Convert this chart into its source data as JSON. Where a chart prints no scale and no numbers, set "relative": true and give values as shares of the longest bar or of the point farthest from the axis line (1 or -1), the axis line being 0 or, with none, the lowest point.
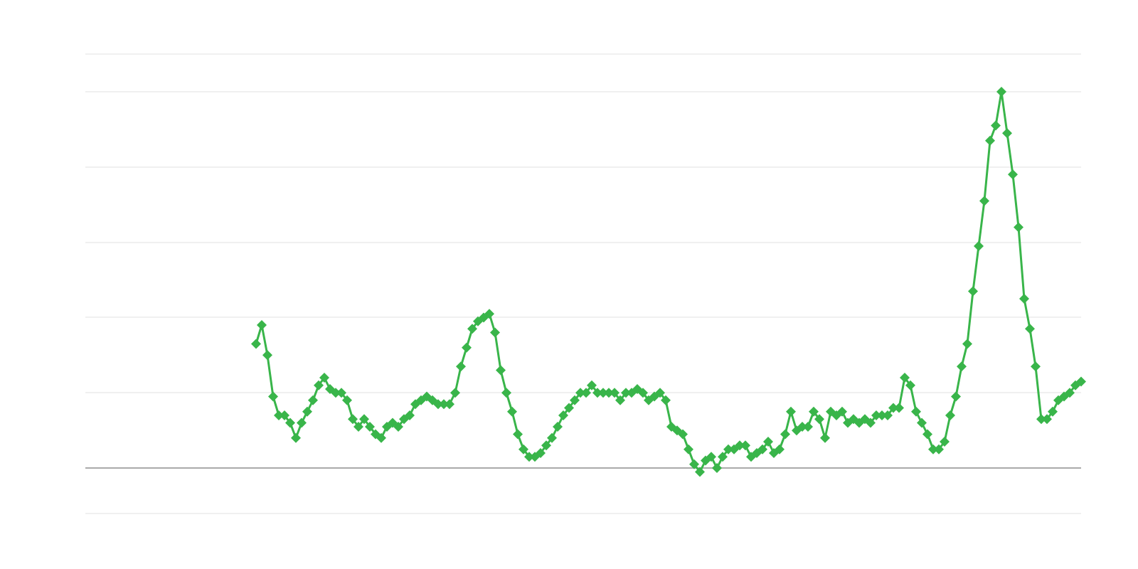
{
  "chart_data": {
    "type": "line",
    "relative": true,
    "color": "#39b54a",
    "marker": "diamond",
    "line_style": "solid",
    "grid": "y",
    "legend": false,
    "categories": [
      null,
      null,
      null,
      null,
      null,
      null,
      null,
      null,
      null,
      null,
      null,
      null,
      null,
      null,
      null,
      null,
      null,
      null,
      null,
      null,
      null,
      null,
      null,
      null,
      null,
      null,
      null,
      null,
      null,
      null,
      null,
      null,
      null,
      null,
      null,
      null,
      null,
      null,
      null,
      null,
      null,
      null,
      null,
      null,
      null,
      null,
      null,
      null,
      null,
      null,
      null,
      null,
      null,
      null,
      null,
      null,
      null,
      null,
      null,
      null,
      null,
      null,
      null,
      null,
      null,
      null,
      null,
      null,
      null,
      null,
      null,
      null,
      null,
      null,
      null,
      null,
      null,
      null,
      null,
      null,
      null,
      null,
      null,
      null,
      null,
      null,
      null,
      null,
      null,
      null,
      null,
      null,
      null,
      null,
      null,
      null,
      null,
      null,
      null,
      null,
      null,
      null,
      null,
      null,
      null,
      null,
      null,
      null,
      null,
      null,
      null,
      null,
      null,
      null,
      null,
      null,
      null,
      null,
      null,
      null,
      null,
      null,
      null,
      null,
      null,
      null,
      null,
      null,
      null,
      null,
      null,
      null,
      null,
      null,
      null,
      null,
      null,
      null,
      null,
      null,
      null,
      null,
      null,
      null,
      null,
      null,
      null,
      null,
      null,
      null,
      null,
      null,
      null,
      null,
      null,
      null,
      null,
      null,
      null,
      null,
      null,
      null,
      null,
      null,
      null,
      null,
      null,
      null,
      null,
      null,
      null,
      null,
      null,
      null,
      null,
      null
    ],
    "values": [
      null,
      null,
      null,
      null,
      null,
      null,
      null,
      null,
      null,
      null,
      null,
      null,
      null,
      null,
      null,
      null,
      null,
      null,
      null,
      null,
      null,
      null,
      null,
      null,
      null,
      null,
      null,
      null,
      null,
      null,
      0.33,
      0.38,
      0.3,
      0.19,
      0.14,
      0.14,
      0.12,
      0.08,
      0.12,
      0.15,
      0.18,
      0.22,
      0.24,
      0.21,
      0.2,
      0.2,
      0.18,
      0.13,
      0.11,
      0.13,
      0.11,
      0.09,
      0.08,
      0.11,
      0.12,
      0.11,
      0.13,
      0.14,
      0.17,
      0.18,
      0.19,
      0.18,
      0.17,
      0.17,
      0.17,
      0.2,
      0.27,
      0.32,
      0.37,
      0.39,
      0.4,
      0.41,
      0.36,
      0.26,
      0.2,
      0.15,
      0.09,
      0.05,
      0.03,
      0.03,
      0.04,
      0.06,
      0.08,
      0.11,
      0.14,
      0.16,
      0.18,
      0.2,
      0.2,
      0.22,
      0.2,
      0.2,
      0.2,
      0.2,
      0.18,
      0.2,
      0.2,
      0.21,
      0.2,
      0.18,
      0.19,
      0.2,
      0.18,
      0.11,
      0.1,
      0.09,
      0.05,
      0.01,
      -0.01,
      0.02,
      0.03,
      0.0,
      0.03,
      0.05,
      0.05,
      0.06,
      0.06,
      0.03,
      0.04,
      0.05,
      0.07,
      0.04,
      0.05,
      0.09,
      0.15,
      0.1,
      0.11,
      0.11,
      0.15,
      0.13,
      0.08,
      0.15,
      0.14,
      0.15,
      0.12,
      0.13,
      0.12,
      0.13,
      0.12,
      0.14,
      0.14,
      0.14,
      0.16,
      0.16,
      0.24,
      0.22,
      0.15,
      0.12,
      0.09,
      0.05,
      0.05,
      0.07,
      0.14,
      0.19,
      0.27,
      0.33,
      0.47,
      0.59,
      0.71,
      0.87,
      0.91,
      1.0,
      0.89,
      0.78,
      0.64,
      0.45,
      0.37,
      0.27,
      0.13,
      0.13,
      0.15,
      0.18,
      0.19,
      0.2,
      0.22,
      0.23
    ]
  }
}
